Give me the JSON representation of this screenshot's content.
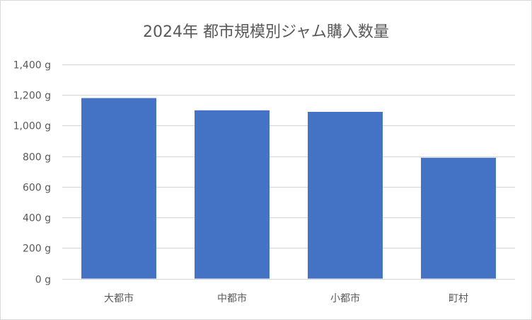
{
  "chart_data": {
    "type": "bar",
    "title": "2024年 都市規模別ジャム購入数量",
    "categories": [
      "大都市",
      "中都市",
      "小都市",
      "町村"
    ],
    "values": [
      1180,
      1100,
      1090,
      790
    ],
    "unit": "g",
    "ylim": [
      0,
      1400
    ],
    "yticks": [
      "0 g",
      "200 g",
      "400 g",
      "600 g",
      "800 g",
      "1,000 g",
      "1,200 g",
      "1,400 g"
    ],
    "xlabel": "",
    "ylabel": "",
    "grid": true,
    "legend": "none",
    "colors": {
      "bar": "#4472C4",
      "grid": "#D9D9D9",
      "text": "#595959",
      "border": "#D9D9D9"
    }
  }
}
